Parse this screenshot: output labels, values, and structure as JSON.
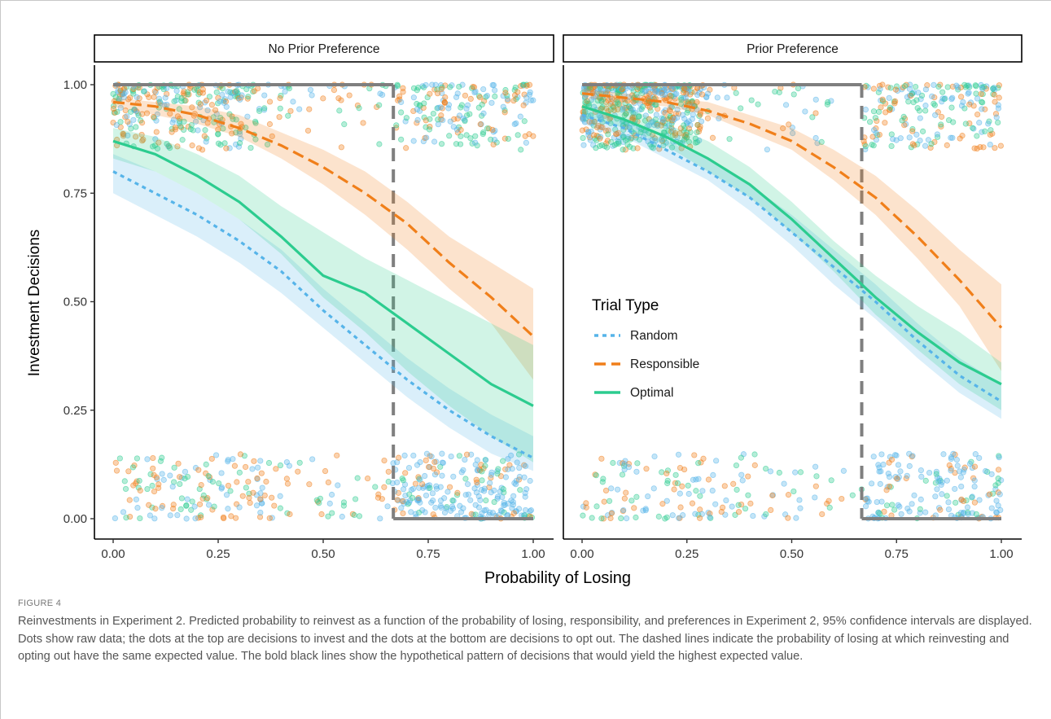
{
  "figure": {
    "label": "FIGURE 4",
    "caption": "Reinvestments in Experiment 2. Predicted probability to reinvest as a function of the probability of losing, responsibility, and preferences in Experiment 2, 95% confidence intervals are displayed. Dots show raw data; the dots at the top are decisions to invest and the dots at the bottom are decisions to opt out. The dashed lines indicate the probability of losing at which reinvesting and opting out have the same expected value. The bold black lines show the hypothetical pattern of decisions that would yield the highest expected value."
  },
  "chart_data": {
    "type": "line",
    "xlabel": "Probability of Losing",
    "ylabel": "Investment Decisions",
    "xlim": [
      0,
      1
    ],
    "ylim": [
      0,
      1
    ],
    "x_ticks": [
      "0.00",
      "0.25",
      "0.50",
      "0.75",
      "1.00"
    ],
    "y_ticks": [
      "0.00",
      "0.25",
      "0.50",
      "0.75",
      "1.00"
    ],
    "legend": {
      "title": "Trial Type",
      "placement": "inside-right-of-right-panel",
      "entries": [
        "Random",
        "Responsible",
        "Optimal"
      ]
    },
    "colors": {
      "Random": "#56b4e9",
      "Responsible": "#f07f1a",
      "Optimal": "#2ccc8f",
      "reference": "#7f7f7f"
    },
    "indifference_x": 0.667,
    "panels": [
      {
        "title": "No Prior Preference",
        "series": [
          {
            "name": "Random",
            "x": [
              0,
              0.1,
              0.2,
              0.3,
              0.4,
              0.5,
              0.6,
              0.7,
              0.8,
              0.9,
              1.0
            ],
            "y": [
              0.8,
              0.75,
              0.7,
              0.64,
              0.57,
              0.48,
              0.4,
              0.32,
              0.25,
              0.19,
              0.14
            ],
            "lower": [
              0.75,
              0.7,
              0.65,
              0.59,
              0.52,
              0.44,
              0.36,
              0.28,
              0.21,
              0.15,
              0.11
            ],
            "upper": [
              0.84,
              0.8,
              0.75,
              0.69,
              0.62,
              0.53,
              0.45,
              0.37,
              0.3,
              0.24,
              0.19
            ]
          },
          {
            "name": "Responsible",
            "x": [
              0,
              0.1,
              0.2,
              0.3,
              0.4,
              0.5,
              0.6,
              0.7,
              0.8,
              0.9,
              1.0
            ],
            "y": [
              0.96,
              0.95,
              0.93,
              0.9,
              0.86,
              0.81,
              0.75,
              0.68,
              0.59,
              0.51,
              0.42
            ],
            "lower": [
              0.95,
              0.93,
              0.91,
              0.88,
              0.83,
              0.77,
              0.7,
              0.62,
              0.53,
              0.45,
              0.32
            ],
            "upper": [
              0.97,
              0.96,
              0.95,
              0.93,
              0.89,
              0.85,
              0.8,
              0.73,
              0.65,
              0.59,
              0.53
            ]
          },
          {
            "name": "Optimal",
            "x": [
              0,
              0.1,
              0.2,
              0.3,
              0.4,
              0.5,
              0.6,
              0.7,
              0.8,
              0.9,
              1.0
            ],
            "y": [
              0.87,
              0.84,
              0.79,
              0.73,
              0.65,
              0.56,
              0.52,
              0.45,
              0.38,
              0.31,
              0.26
            ],
            "lower": [
              0.83,
              0.8,
              0.75,
              0.69,
              0.61,
              0.51,
              0.43,
              0.34,
              0.26,
              0.19,
              0.13
            ],
            "upper": [
              0.9,
              0.88,
              0.84,
              0.79,
              0.72,
              0.66,
              0.6,
              0.55,
              0.5,
              0.45,
              0.4
            ]
          }
        ]
      },
      {
        "title": "Prior Preference",
        "series": [
          {
            "name": "Random",
            "x": [
              0,
              0.1,
              0.2,
              0.3,
              0.4,
              0.5,
              0.6,
              0.7,
              0.8,
              0.9,
              1.0
            ],
            "y": [
              0.93,
              0.9,
              0.85,
              0.8,
              0.74,
              0.66,
              0.58,
              0.5,
              0.41,
              0.33,
              0.27
            ],
            "lower": [
              0.91,
              0.88,
              0.83,
              0.78,
              0.71,
              0.63,
              0.54,
              0.46,
              0.37,
              0.29,
              0.23
            ],
            "upper": [
              0.95,
              0.92,
              0.87,
              0.83,
              0.77,
              0.7,
              0.62,
              0.54,
              0.45,
              0.37,
              0.31
            ]
          },
          {
            "name": "Responsible",
            "x": [
              0,
              0.1,
              0.2,
              0.3,
              0.4,
              0.5,
              0.6,
              0.7,
              0.8,
              0.9,
              1.0
            ],
            "y": [
              0.98,
              0.97,
              0.96,
              0.94,
              0.91,
              0.87,
              0.81,
              0.74,
              0.65,
              0.55,
              0.44
            ],
            "lower": [
              0.97,
              0.96,
              0.95,
              0.93,
              0.89,
              0.85,
              0.78,
              0.7,
              0.6,
              0.49,
              0.34
            ],
            "upper": [
              0.99,
              0.98,
              0.97,
              0.96,
              0.93,
              0.9,
              0.85,
              0.79,
              0.71,
              0.62,
              0.54
            ]
          },
          {
            "name": "Optimal",
            "x": [
              0,
              0.1,
              0.2,
              0.3,
              0.4,
              0.5,
              0.6,
              0.7,
              0.8,
              0.9,
              1.0
            ],
            "y": [
              0.95,
              0.92,
              0.88,
              0.83,
              0.77,
              0.69,
              0.6,
              0.51,
              0.43,
              0.36,
              0.31
            ],
            "lower": [
              0.93,
              0.9,
              0.86,
              0.8,
              0.74,
              0.66,
              0.57,
              0.47,
              0.39,
              0.31,
              0.25
            ],
            "upper": [
              0.97,
              0.95,
              0.91,
              0.87,
              0.81,
              0.73,
              0.64,
              0.56,
              0.49,
              0.43,
              0.36
            ]
          }
        ]
      }
    ]
  }
}
